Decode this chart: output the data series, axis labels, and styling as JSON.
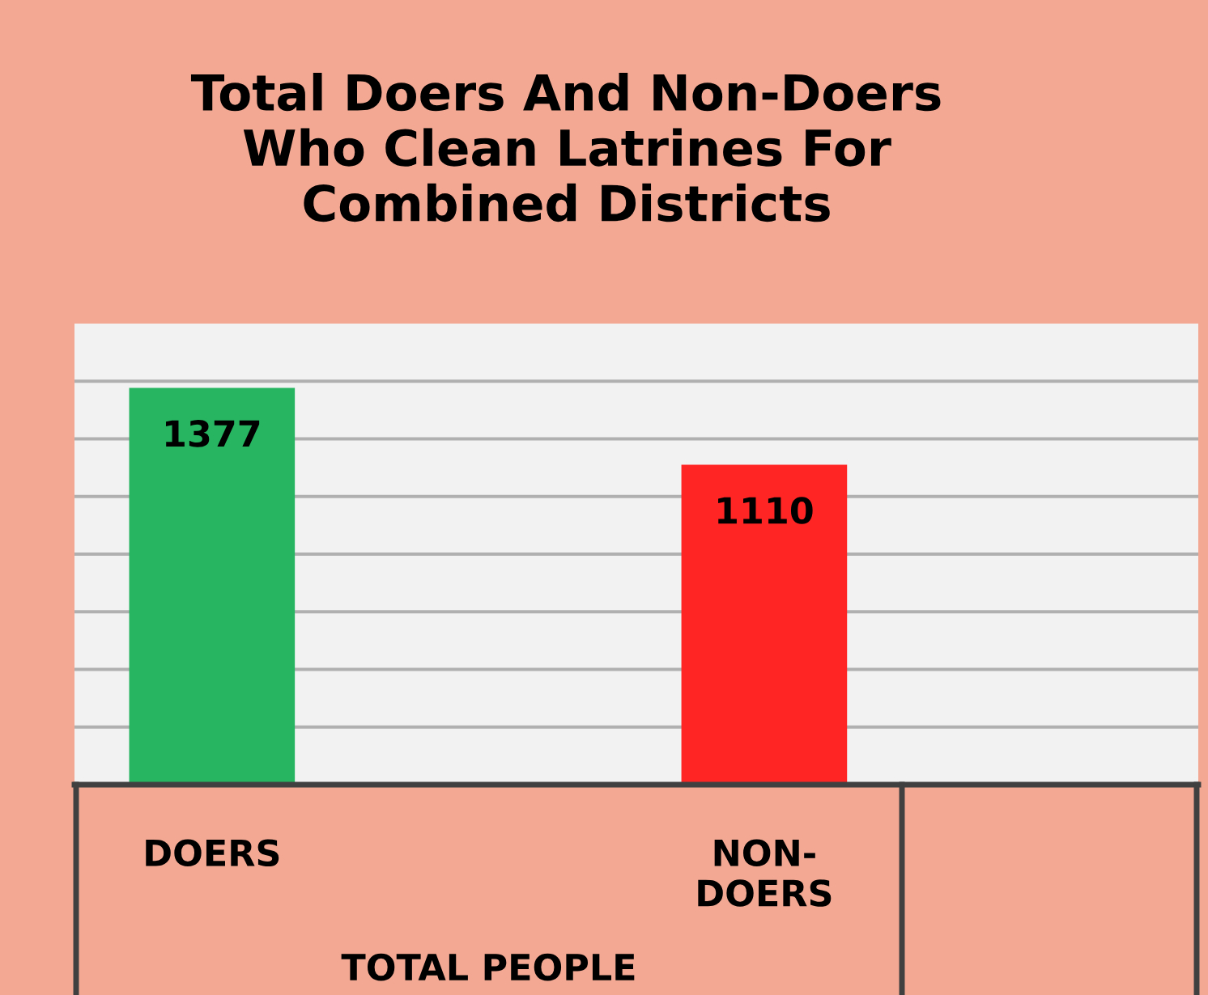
{
  "chart_data": {
    "type": "bar",
    "title": "Total Doers And Non-Doers\nWho Clean Latrines For\nCombined Districts",
    "categories": [
      "DOERS",
      "NON-\nDOERS"
    ],
    "values": [
      1377,
      1110
    ],
    "colors": [
      "#27b562",
      "#ff2525"
    ],
    "xlabel": "TOTAL PEOPLE",
    "ylim": [
      0,
      1600
    ],
    "yticks": [
      {
        "value": 200,
        "label": null
      },
      {
        "value": 400,
        "label": null
      },
      {
        "value": 600,
        "label": null
      },
      {
        "value": 800,
        "label": null
      },
      {
        "value": 1000,
        "label": null
      },
      {
        "value": 1200,
        "label": null
      },
      {
        "value": 1400,
        "label": null
      }
    ],
    "tick_labels": "x",
    "grid": "y",
    "data_labels": true
  }
}
